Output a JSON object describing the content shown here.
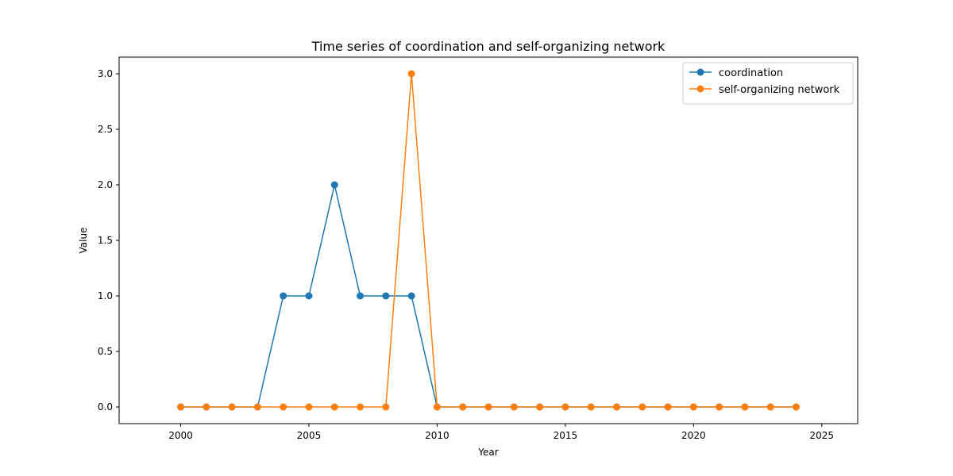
{
  "chart_data": {
    "type": "line",
    "title": "Time series of coordination and self-organizing network",
    "xlabel": "Year",
    "ylabel": "Value",
    "x": [
      2000,
      2001,
      2002,
      2003,
      2004,
      2005,
      2006,
      2007,
      2008,
      2009,
      2010,
      2011,
      2012,
      2013,
      2014,
      2015,
      2016,
      2017,
      2018,
      2019,
      2020,
      2021,
      2022,
      2023,
      2024
    ],
    "xlim": [
      1997.6,
      2026.4
    ],
    "ylim": [
      -0.15,
      3.15
    ],
    "xticks": [
      2000,
      2005,
      2010,
      2015,
      2020,
      2025
    ],
    "yticks": [
      0.0,
      0.5,
      1.0,
      1.5,
      2.0,
      2.5,
      3.0
    ],
    "xtick_labels": [
      "2000",
      "2005",
      "2010",
      "2015",
      "2020",
      "2025"
    ],
    "ytick_labels": [
      "0.0",
      "0.5",
      "1.0",
      "1.5",
      "2.0",
      "2.5",
      "3.0"
    ],
    "grid": false,
    "legend_position": "top-right",
    "series": [
      {
        "name": "coordination",
        "color": "#1f77b4",
        "values": [
          0,
          0,
          0,
          0,
          1,
          1,
          2,
          1,
          1,
          1,
          0,
          0,
          0,
          0,
          0,
          0,
          0,
          0,
          0,
          0,
          0,
          0,
          0,
          0,
          0
        ]
      },
      {
        "name": "self-organizing network",
        "color": "#ff7f0e",
        "values": [
          0,
          0,
          0,
          0,
          0,
          0,
          0,
          0,
          0,
          3,
          0,
          0,
          0,
          0,
          0,
          0,
          0,
          0,
          0,
          0,
          0,
          0,
          0,
          0,
          0
        ]
      }
    ]
  }
}
